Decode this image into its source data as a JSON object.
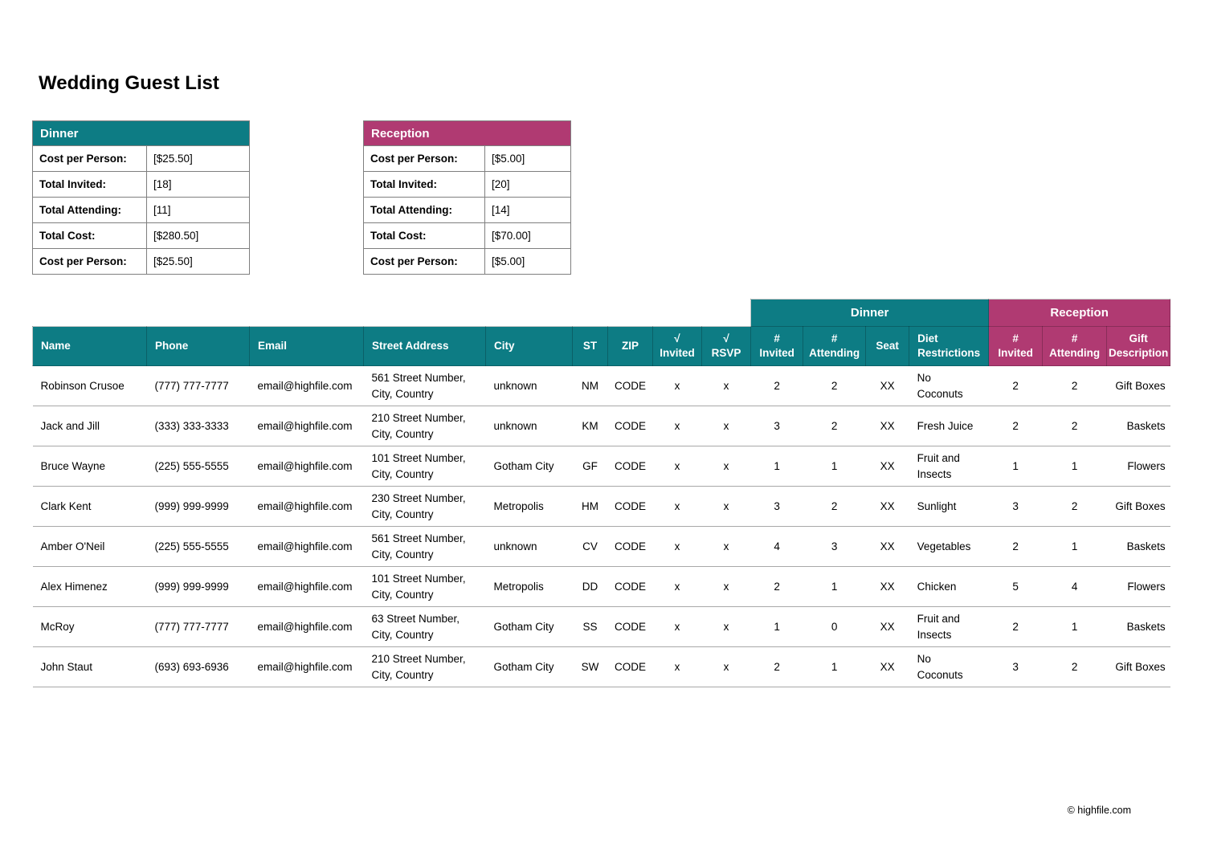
{
  "title": "Wedding Guest List",
  "footer": "© highfile.com",
  "colors": {
    "dinner_accent": "#0d7c84",
    "reception_accent": "#b03a72",
    "summary_border": "#7f7f7f",
    "row_divider": "#a8a8a8"
  },
  "dinner_summary": {
    "title": "Dinner",
    "rows": [
      {
        "label": "Cost per Person:",
        "value": "[$25.50]"
      },
      {
        "label": "Total Invited:",
        "value": "[18]"
      },
      {
        "label": "Total Attending:",
        "value": "[11]"
      },
      {
        "label": "Total Cost:",
        "value": "[$280.50]"
      },
      {
        "label": "Cost per Person:",
        "value": "[$25.50]"
      }
    ]
  },
  "reception_summary": {
    "title": "Reception",
    "rows": [
      {
        "label": "Cost per Person:",
        "value": "[$5.00]"
      },
      {
        "label": "Total Invited:",
        "value": "[20]"
      },
      {
        "label": "Total Attending:",
        "value": "[14]"
      },
      {
        "label": "Total Cost:",
        "value": "[$70.00]"
      },
      {
        "label": "Cost per Person:",
        "value": "[$5.00]"
      }
    ]
  },
  "guest_table": {
    "group_headers": [
      {
        "label": "Dinner",
        "span": 4
      },
      {
        "label": "Reception",
        "span": 3
      }
    ],
    "columns": [
      {
        "key": "name",
        "label": "Name"
      },
      {
        "key": "phone",
        "label": "Phone"
      },
      {
        "key": "email",
        "label": "Email"
      },
      {
        "key": "street",
        "label": "Street Address"
      },
      {
        "key": "city",
        "label": "City"
      },
      {
        "key": "st",
        "label": "ST"
      },
      {
        "key": "zip",
        "label": "ZIP"
      },
      {
        "key": "invited_check",
        "label": "√\nInvited"
      },
      {
        "key": "rsvp_check",
        "label": "√\nRSVP"
      },
      {
        "key": "dinner_invited",
        "label": "#\nInvited"
      },
      {
        "key": "dinner_attending",
        "label": "#\nAttending"
      },
      {
        "key": "seat",
        "label": "Seat"
      },
      {
        "key": "diet",
        "label": "Diet\nRestrictions"
      },
      {
        "key": "reception_invited",
        "label": "#\nInvited"
      },
      {
        "key": "reception_attending",
        "label": "#\nAttending"
      },
      {
        "key": "gift",
        "label": "Gift\nDescription"
      }
    ],
    "rows": [
      {
        "name": "Robinson Crusoe",
        "phone": "(777) 777-7777",
        "email": "email@highfile.com",
        "street": "561 Street Number,\nCity, Country",
        "city": "unknown",
        "st": "NM",
        "zip": "CODE",
        "invited_check": "x",
        "rsvp_check": "x",
        "dinner_invited": "2",
        "dinner_attending": "2",
        "seat": "XX",
        "diet": "No\nCoconuts",
        "reception_invited": "2",
        "reception_attending": "2",
        "gift": "Gift Boxes"
      },
      {
        "name": "Jack and Jill",
        "phone": "(333) 333-3333",
        "email": "email@highfile.com",
        "street": "210 Street Number,\nCity, Country",
        "city": "unknown",
        "st": "KM",
        "zip": "CODE",
        "invited_check": "x",
        "rsvp_check": "x",
        "dinner_invited": "3",
        "dinner_attending": "2",
        "seat": "XX",
        "diet": "Fresh Juice",
        "reception_invited": "2",
        "reception_attending": "2",
        "gift": "Baskets"
      },
      {
        "name": "Bruce Wayne",
        "phone": "(225) 555-5555",
        "email": "email@highfile.com",
        "street": "101 Street Number,\nCity, Country",
        "city": "Gotham City",
        "st": "GF",
        "zip": "CODE",
        "invited_check": "x",
        "rsvp_check": "x",
        "dinner_invited": "1",
        "dinner_attending": "1",
        "seat": "XX",
        "diet": "Fruit and\nInsects",
        "reception_invited": "1",
        "reception_attending": "1",
        "gift": "Flowers"
      },
      {
        "name": "Clark Kent",
        "phone": "(999) 999-9999",
        "email": "email@highfile.com",
        "street": "230 Street Number,\nCity, Country",
        "city": "Metropolis",
        "st": "HM",
        "zip": "CODE",
        "invited_check": "x",
        "rsvp_check": "x",
        "dinner_invited": "3",
        "dinner_attending": "2",
        "seat": "XX",
        "diet": "Sunlight",
        "reception_invited": "3",
        "reception_attending": "2",
        "gift": "Gift Boxes"
      },
      {
        "name": "Amber O'Neil",
        "phone": "(225) 555-5555",
        "email": "email@highfile.com",
        "street": "561 Street Number,\nCity, Country",
        "city": "unknown",
        "st": "CV",
        "zip": "CODE",
        "invited_check": "x",
        "rsvp_check": "x",
        "dinner_invited": "4",
        "dinner_attending": "3",
        "seat": "XX",
        "diet": "Vegetables",
        "reception_invited": "2",
        "reception_attending": "1",
        "gift": "Baskets"
      },
      {
        "name": "Alex Himenez",
        "phone": "(999) 999-9999",
        "email": "email@highfile.com",
        "street": "101 Street Number,\nCity, Country",
        "city": "Metropolis",
        "st": "DD",
        "zip": "CODE",
        "invited_check": "x",
        "rsvp_check": "x",
        "dinner_invited": "2",
        "dinner_attending": "1",
        "seat": "XX",
        "diet": "Chicken",
        "reception_invited": "5",
        "reception_attending": "4",
        "gift": "Flowers"
      },
      {
        "name": "McRoy",
        "phone": "(777) 777-7777",
        "email": "email@highfile.com",
        "street": "63 Street Number,\nCity, Country",
        "city": "Gotham City",
        "st": "SS",
        "zip": "CODE",
        "invited_check": "x",
        "rsvp_check": "x",
        "dinner_invited": "1",
        "dinner_attending": "0",
        "seat": "XX",
        "diet": "Fruit and\nInsects",
        "reception_invited": "2",
        "reception_attending": "1",
        "gift": "Baskets"
      },
      {
        "name": "John Staut",
        "phone": "(693) 693-6936",
        "email": "email@highfile.com",
        "street": "210 Street Number,\nCity, Country",
        "city": "Gotham City",
        "st": "SW",
        "zip": "CODE",
        "invited_check": "x",
        "rsvp_check": "x",
        "dinner_invited": "2",
        "dinner_attending": "1",
        "seat": "XX",
        "diet": "No\nCoconuts",
        "reception_invited": "3",
        "reception_attending": "2",
        "gift": "Gift Boxes"
      }
    ]
  }
}
